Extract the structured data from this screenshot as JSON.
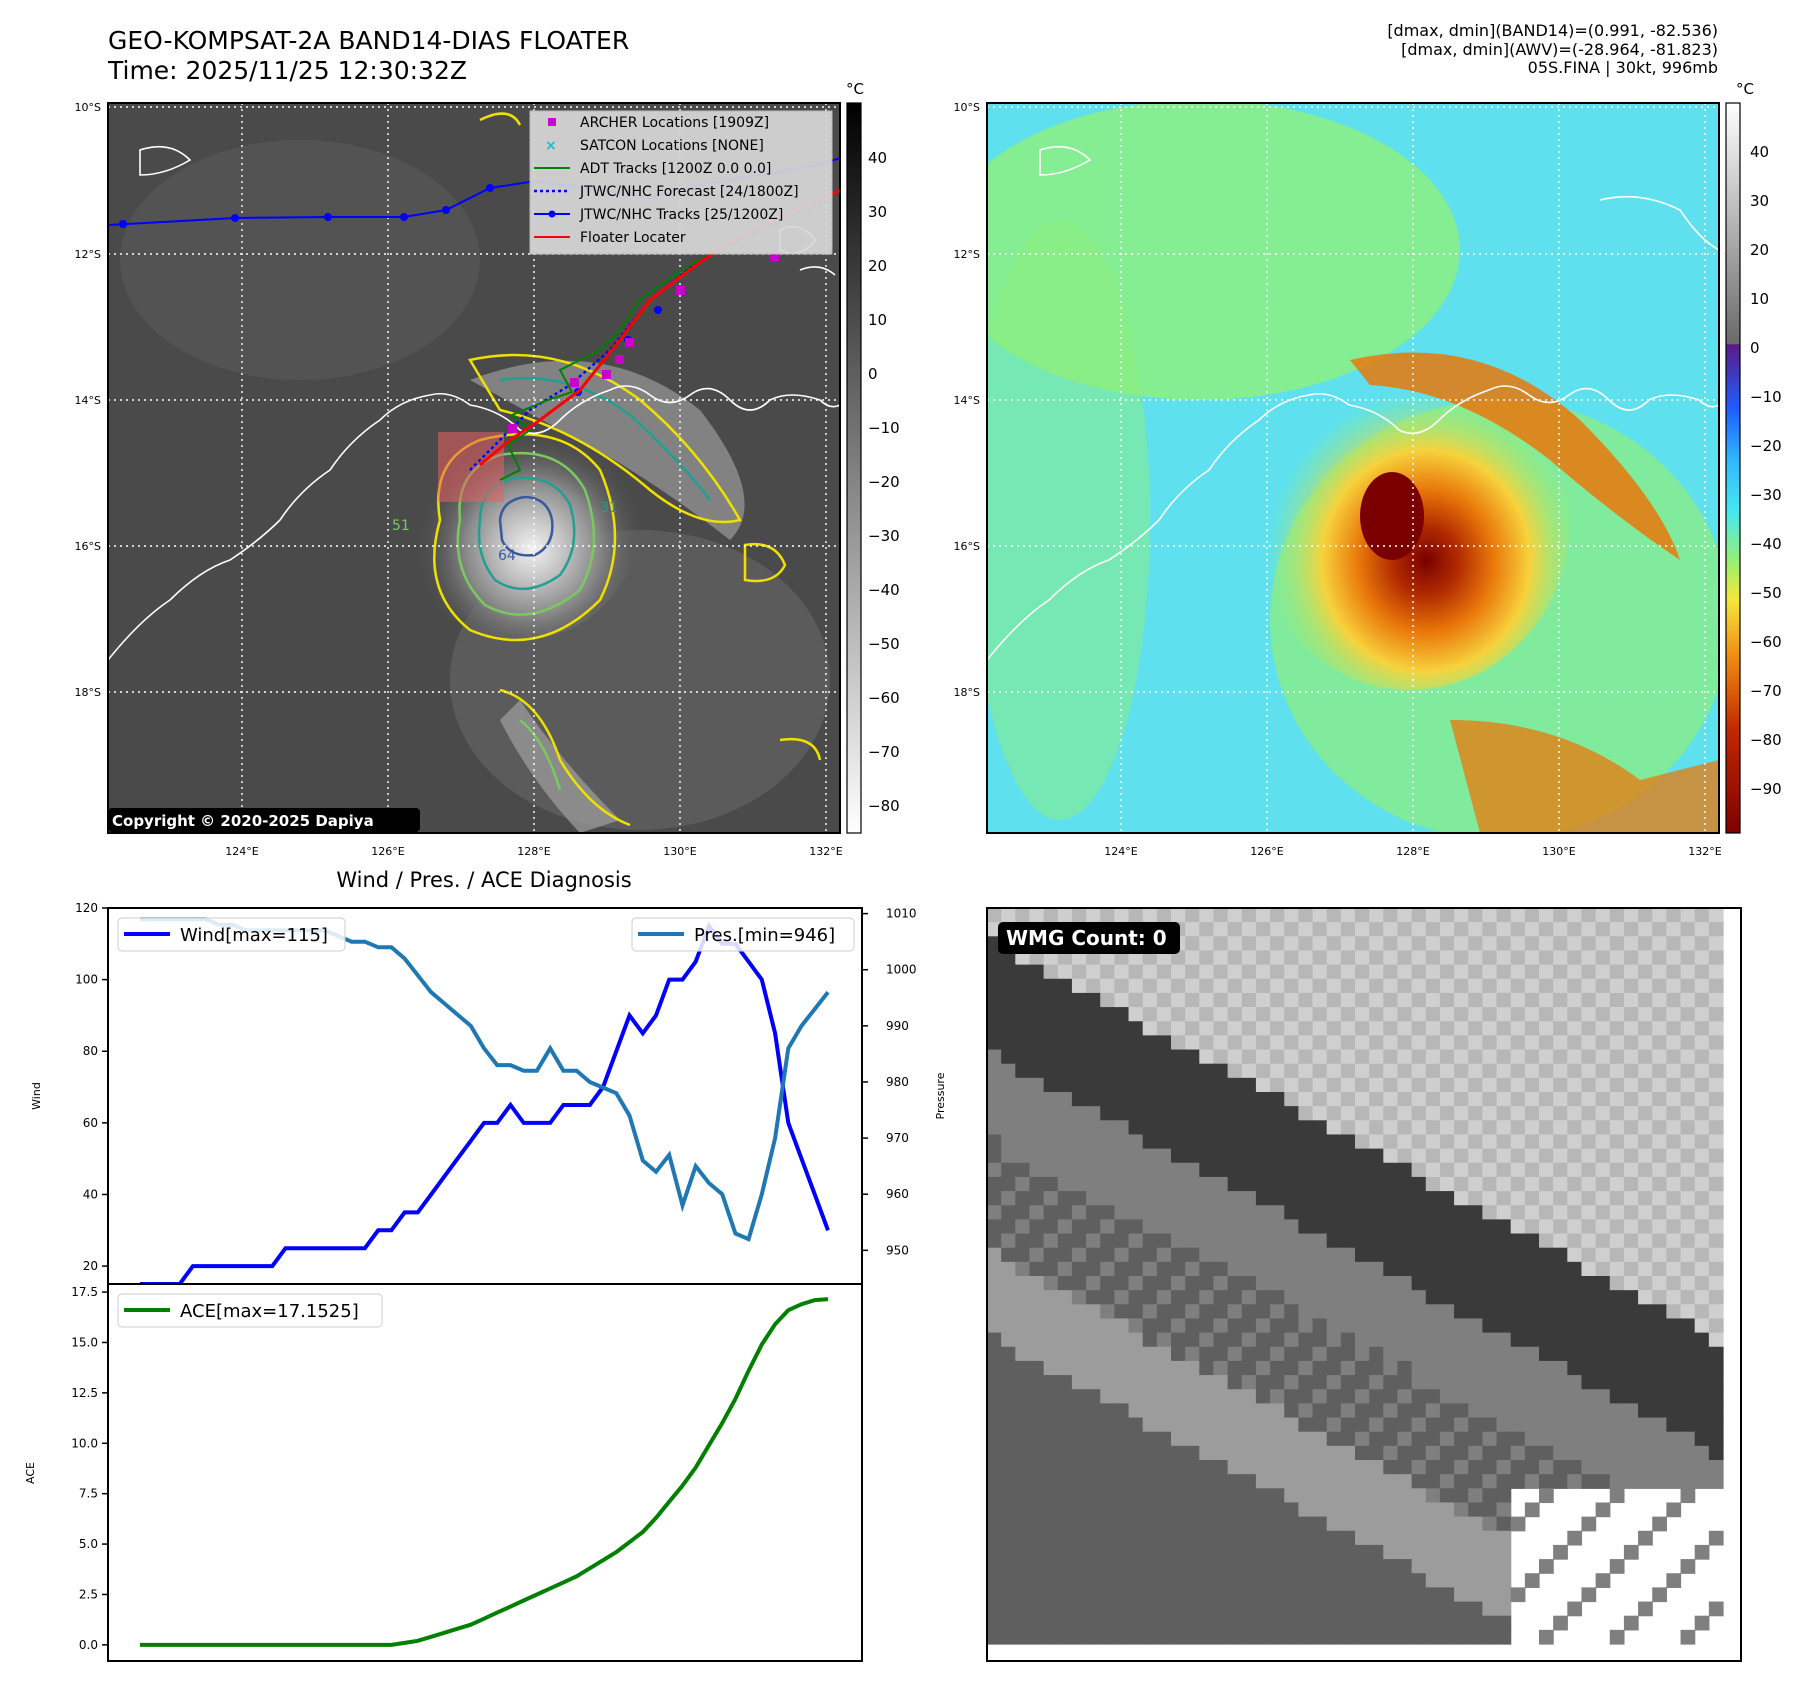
{
  "header": {
    "title_line1": "GEO-KOMPSAT-2A BAND14-DIAS FLOATER",
    "title_line2": "Time: 2025/11/25 12:30:32Z",
    "info_line1": "[dmax, dmin](BAND14)=(0.991, -82.536)",
    "info_line2": "[dmax, dmin](AWV)=(-28.964, -81.823)",
    "info_line3": "05S.FINA | 30kt, 996mb"
  },
  "map": {
    "lat_labels": [
      "10°S",
      "12°S",
      "14°S",
      "16°S",
      "18°S"
    ],
    "lon_labels": [
      "124°E",
      "126°E",
      "128°E",
      "130°E",
      "132°E"
    ],
    "copyright": "Copyright © 2020-2025 Dapiya",
    "colorbar_unit": "°C",
    "gray_colorbar_ticks": [
      "40",
      "30",
      "20",
      "10",
      "0",
      "−10",
      "−20",
      "−30",
      "−40",
      "−50",
      "−60",
      "−70",
      "−80"
    ],
    "color_colorbar_ticks": [
      "40",
      "30",
      "20",
      "10",
      "0",
      "−10",
      "−20",
      "−30",
      "−40",
      "−50",
      "−60",
      "−70",
      "−80",
      "−90"
    ],
    "legend": [
      "ARCHER Locations [1909Z]",
      "SATCON Locations [NONE]",
      "ADT Tracks [1200Z 0.0 0.0]",
      "JTWC/NHC Forecast [24/1800Z]",
      "JTWC/NHC Tracks [25/1200Z]",
      "Floater Locater"
    ],
    "contour_labels": [
      "51",
      "31",
      "64"
    ],
    "colors": {
      "archer": "#cc00cc",
      "satcon": "#17becf",
      "adt": "#008000",
      "forecast": "#0000ff",
      "track": "#0000ff",
      "locater": "#ff0000"
    }
  },
  "wmg": {
    "label": "WMG Count: 0"
  },
  "chart_data": [
    {
      "type": "line",
      "title": "Wind / Pres. / ACE Diagnosis",
      "ylabel": "Wind",
      "ylabel_right": "Pressure",
      "ylim": [
        15,
        120
      ],
      "ylim_right": [
        944,
        1011
      ],
      "yticks": [
        "20",
        "40",
        "60",
        "80",
        "100",
        "120"
      ],
      "yticks_right": [
        "950",
        "960",
        "970",
        "980",
        "990",
        "1000",
        "1010"
      ],
      "series": [
        {
          "name": "Wind[max=115]",
          "color": "#0000ff",
          "values": [
            15,
            15,
            15,
            15,
            20,
            20,
            20,
            20,
            20,
            20,
            20,
            25,
            25,
            25,
            25,
            25,
            25,
            25,
            30,
            30,
            35,
            35,
            40,
            45,
            50,
            55,
            60,
            60,
            65,
            60,
            60,
            60,
            65,
            65,
            65,
            70,
            80,
            90,
            85,
            90,
            100,
            100,
            105,
            115,
            110,
            110,
            105,
            100,
            85,
            60,
            50,
            40,
            30
          ]
        },
        {
          "name": "Pres.[min=946]",
          "color": "#1f77b4",
          "values": [
            1009,
            1009,
            1009,
            1009,
            1009,
            1009,
            1008,
            1008,
            1007,
            1007,
            1007,
            1007,
            1007,
            1007,
            1007,
            1006,
            1005,
            1005,
            1004,
            1004,
            1002,
            999,
            996,
            994,
            992,
            990,
            986,
            983,
            983,
            982,
            982,
            986,
            982,
            982,
            980,
            979,
            978,
            974,
            966,
            964,
            967,
            958,
            965,
            962,
            960,
            953,
            952,
            960,
            970,
            986,
            990,
            993,
            996
          ]
        }
      ]
    },
    {
      "type": "line",
      "ylabel": "ACE",
      "ylim": [
        -0.8,
        17.9
      ],
      "yticks": [
        "0.0",
        "2.5",
        "5.0",
        "7.5",
        "10.0",
        "12.5",
        "15.0",
        "17.5"
      ],
      "series": [
        {
          "name": "ACE[max=17.1525]",
          "color": "#008000",
          "values": [
            0,
            0,
            0,
            0,
            0,
            0,
            0,
            0,
            0,
            0,
            0,
            0,
            0,
            0,
            0,
            0,
            0,
            0,
            0,
            0,
            0.1,
            0.2,
            0.4,
            0.6,
            0.8,
            1.0,
            1.3,
            1.6,
            1.9,
            2.2,
            2.5,
            2.8,
            3.1,
            3.4,
            3.8,
            4.2,
            4.6,
            5.1,
            5.6,
            6.3,
            7.1,
            7.9,
            8.8,
            9.9,
            11.0,
            12.2,
            13.6,
            14.9,
            15.9,
            16.6,
            16.9,
            17.1,
            17.15
          ]
        }
      ]
    }
  ]
}
